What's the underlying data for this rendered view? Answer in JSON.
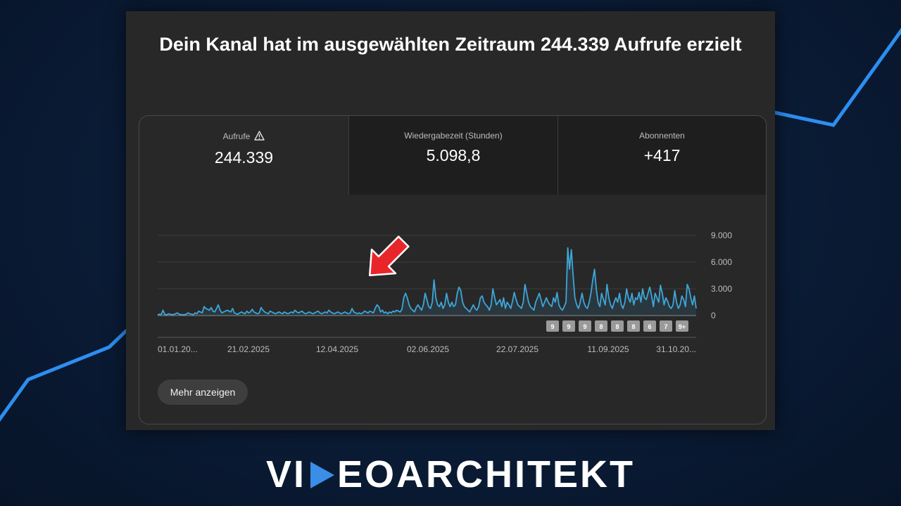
{
  "headline": "Dein Kanal hat im ausgewählten Zeitraum 244.339 Aufrufe erzielt",
  "tabs": [
    {
      "label": "Aufrufe",
      "value": "244.339",
      "warning": true
    },
    {
      "label": "Wiedergabezeit (Stunden)",
      "value": "5.098,8"
    },
    {
      "label": "Abonnenten",
      "value": "+417"
    }
  ],
  "more_button": "Mehr anzeigen",
  "brand": {
    "left": "VI",
    "right": "EOARCHITEKT"
  },
  "colors": {
    "line": "#3ea6d8",
    "card": "#282828",
    "accent": "#3b8ee6",
    "arrow": "#e8262a"
  },
  "icons": {
    "warning": "warning-triangle-icon",
    "arrow": "red-arrow-icon",
    "play": "play-icon"
  },
  "chart_data": {
    "type": "line",
    "series": [
      {
        "values": [
          80,
          150,
          120,
          600,
          120,
          80,
          200,
          150,
          100,
          120,
          200,
          300,
          150,
          120,
          80,
          100,
          150,
          300,
          200,
          150,
          100,
          300,
          200,
          500,
          400,
          300,
          1000,
          800,
          700,
          600,
          900,
          500,
          400,
          800,
          1200,
          600,
          300,
          400,
          500,
          600,
          500,
          400,
          800,
          300,
          200,
          150,
          300,
          400,
          300,
          200,
          500,
          300,
          400,
          700,
          400,
          300,
          200,
          300,
          900,
          600,
          400,
          300,
          200,
          500,
          400,
          300,
          200,
          300,
          400,
          300,
          200,
          400,
          300,
          200,
          300,
          400,
          300,
          600,
          400,
          300,
          400,
          500,
          300,
          200,
          300,
          400,
          300,
          200,
          300,
          400,
          500,
          300,
          200,
          300,
          400,
          300,
          600,
          400,
          300,
          200,
          300,
          400,
          300,
          200,
          300,
          400,
          300,
          200,
          300,
          800,
          400,
          300,
          200,
          300,
          200,
          300,
          500,
          400,
          300,
          500,
          400,
          300,
          800,
          1200,
          1000,
          400,
          600,
          300,
          400,
          200,
          400,
          300,
          500,
          400,
          600,
          500,
          400,
          700,
          2000,
          2500,
          2000,
          1200,
          800,
          600,
          400,
          900,
          1200,
          900,
          600,
          1200,
          2500,
          1800,
          1000,
          800,
          1500,
          4000,
          2000,
          1200,
          1000,
          1500,
          800,
          1200,
          2500,
          1500,
          1000,
          1500,
          1000,
          1200,
          2500,
          3200,
          2800,
          1500,
          1000,
          800,
          600,
          400,
          800,
          1200,
          800,
          600,
          1000,
          2000,
          2200,
          1500,
          1200,
          1000,
          600,
          1200,
          3000,
          2000,
          1200,
          1500,
          1800,
          1000,
          2000,
          800,
          1500,
          1200,
          800,
          1600,
          2600,
          1800,
          1200,
          1000,
          800,
          1500,
          3500,
          2500,
          1500,
          1000,
          800,
          600,
          1500,
          2000,
          2500,
          1800,
          1000,
          1500,
          2000,
          1500,
          1200,
          1000,
          2000,
          1500,
          2600,
          1200,
          800,
          600,
          1000,
          1500,
          7600,
          5200,
          7400,
          4500,
          2000,
          1200,
          800,
          1500,
          2500,
          1500,
          1000,
          800,
          1500,
          2500,
          4000,
          5200,
          3000,
          1500,
          1000,
          2500,
          1800,
          1200,
          3500,
          2000,
          1200,
          800,
          1500,
          2000,
          1500,
          2500,
          1200,
          800,
          1500,
          3000,
          2000,
          1500,
          2500,
          1200,
          2000,
          1800,
          2600,
          1500,
          3000,
          2000,
          1800,
          2500,
          3200,
          2200,
          1000,
          2500,
          2000,
          1500,
          3400,
          2500,
          1200,
          2000,
          1600,
          1000,
          800,
          1200,
          2800,
          1500,
          800,
          1200,
          2200,
          1800,
          1000,
          3500,
          3000,
          2000,
          1200,
          2200,
          800
        ]
      }
    ],
    "ylim": [
      0,
      9000
    ],
    "yticks": [
      "9.000",
      "6.000",
      "3.000",
      "0"
    ],
    "ytick_values": [
      9000,
      6000,
      3000,
      0
    ],
    "xticks": [
      "01.01.20...",
      "21.02.2025",
      "12.04.2025",
      "02.06.2025",
      "22.07.2025",
      "11.09.2025",
      "31.10.20..."
    ],
    "markers": [
      "9",
      "9",
      "9",
      "8",
      "8",
      "8",
      "6",
      "7",
      "9+"
    ],
    "grid": true
  }
}
